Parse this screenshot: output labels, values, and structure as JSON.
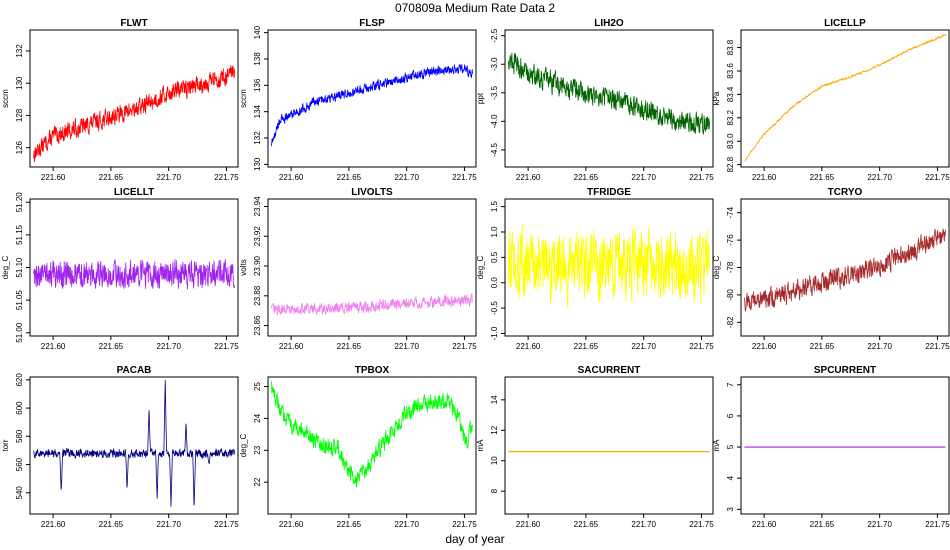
{
  "figure": {
    "title": "070809a   Medium Rate Data 2",
    "xlabel": "day of year"
  },
  "chart_data": [
    {
      "type": "line",
      "title": "FLWT",
      "ylabel": "sccm",
      "color": "#ff0000",
      "xlim": [
        221.58,
        221.76
      ],
      "ylim": [
        124.8,
        133.3
      ],
      "yticks": [
        126,
        128,
        130,
        132
      ],
      "xticks": [
        221.6,
        221.65,
        221.7,
        221.75
      ],
      "series": [
        {
          "name": "FLWT",
          "x": [
            221.583,
            221.6,
            221.625,
            221.65,
            221.675,
            221.7,
            221.725,
            221.75,
            221.757
          ],
          "y": [
            125.6,
            126.7,
            127.3,
            127.9,
            128.5,
            129.4,
            129.9,
            130.4,
            130.6
          ]
        }
      ],
      "noise": 0.75
    },
    {
      "type": "line",
      "title": "FLSP",
      "ylabel": "sccm",
      "color": "#0000ff",
      "xlim": [
        221.58,
        221.76
      ],
      "ylim": [
        129.8,
        140.2
      ],
      "yticks": [
        130,
        132,
        134,
        136,
        138,
        140
      ],
      "xticks": [
        221.6,
        221.65,
        221.7,
        221.75
      ],
      "series": [
        {
          "name": "FLSP",
          "x": [
            221.583,
            221.59,
            221.6,
            221.625,
            221.65,
            221.675,
            221.7,
            221.725,
            221.75,
            221.757
          ],
          "y": [
            131.5,
            133.3,
            133.8,
            134.9,
            135.4,
            136.0,
            136.6,
            137.1,
            137.3,
            136.8
          ]
        }
      ],
      "noise": 0.5
    },
    {
      "type": "line",
      "title": "LIH2O",
      "ylabel": "ppt",
      "color": "#006400",
      "xlim": [
        221.58,
        221.76
      ],
      "ylim": [
        -4.8,
        -2.4
      ],
      "yticks": [
        -4.5,
        -4.0,
        -3.5,
        -3.0,
        -2.5
      ],
      "xticks": [
        221.6,
        221.65,
        221.7,
        221.75
      ],
      "series": [
        {
          "name": "LIH2O",
          "x": [
            221.583,
            221.6,
            221.625,
            221.65,
            221.675,
            221.7,
            221.725,
            221.75,
            221.757
          ],
          "y": [
            -2.9,
            -3.15,
            -3.35,
            -3.5,
            -3.6,
            -3.8,
            -3.95,
            -4.05,
            -4.0
          ]
        }
      ],
      "noise": 0.25
    },
    {
      "type": "line",
      "title": "LICELLP",
      "ylabel": "kPa",
      "color": "#ffa500",
      "xlim": [
        221.58,
        221.76
      ],
      "ylim": [
        82.78,
        83.95
      ],
      "yticks": [
        82.8,
        83.0,
        83.2,
        83.4,
        83.6,
        83.8
      ],
      "xticks": [
        221.6,
        221.65,
        221.7,
        221.75
      ],
      "series": [
        {
          "name": "LICELLP",
          "x": [
            221.583,
            221.6,
            221.625,
            221.65,
            221.675,
            221.7,
            221.725,
            221.75,
            221.757
          ],
          "y": [
            82.83,
            83.06,
            83.3,
            83.47,
            83.55,
            83.65,
            83.78,
            83.88,
            83.91
          ]
        }
      ],
      "noise": 0.012
    },
    {
      "type": "line",
      "title": "LICELLT",
      "ylabel": "deg_C",
      "color": "#a020f0",
      "xlim": [
        221.58,
        221.76
      ],
      "ylim": [
        50.995,
        51.205
      ],
      "yticks": [
        51.0,
        51.05,
        51.1,
        51.15,
        51.2
      ],
      "xticks": [
        221.6,
        221.65,
        221.7,
        221.75
      ],
      "series": [
        {
          "name": "LICELLT",
          "x": [
            221.583,
            221.757
          ],
          "y": [
            51.09,
            51.09
          ]
        }
      ],
      "noise": 0.028
    },
    {
      "type": "line",
      "title": "LIVOLTS",
      "ylabel": "volts",
      "color": "#ee82ee",
      "xlim": [
        221.58,
        221.76
      ],
      "ylim": [
        23.853,
        23.945
      ],
      "yticks": [
        23.86,
        23.88,
        23.9,
        23.92,
        23.94
      ],
      "xticks": [
        221.6,
        221.65,
        221.7,
        221.75
      ],
      "series": [
        {
          "name": "LIVOLTS",
          "x": [
            221.583,
            221.625,
            221.65,
            221.675,
            221.7,
            221.725,
            221.757
          ],
          "y": [
            23.871,
            23.871,
            23.872,
            23.873,
            23.875,
            23.876,
            23.877
          ]
        }
      ],
      "noise": 0.005
    },
    {
      "type": "line",
      "title": "TFRIDGE",
      "ylabel": "deg_C",
      "color": "#ffff00",
      "xlim": [
        221.58,
        221.76
      ],
      "ylim": [
        -1.05,
        1.65
      ],
      "yticks": [
        -1.0,
        -0.5,
        0.0,
        0.5,
        1.0,
        1.5
      ],
      "xticks": [
        221.6,
        221.65,
        221.7,
        221.75
      ],
      "series": [
        {
          "name": "TFRIDGE",
          "x": [
            221.583,
            221.757
          ],
          "y": [
            0.35,
            0.35
          ]
        }
      ],
      "noise": 0.9
    },
    {
      "type": "line",
      "title": "TCRYO",
      "ylabel": "deg_C",
      "color": "#a52a2a",
      "xlim": [
        221.58,
        221.76
      ],
      "ylim": [
        -83.0,
        -73.0
      ],
      "yticks": [
        -82,
        -80,
        -78,
        -76,
        -74
      ],
      "xticks": [
        221.6,
        221.65,
        221.7,
        221.75
      ],
      "series": [
        {
          "name": "TCRYO",
          "x": [
            221.583,
            221.6,
            221.625,
            221.65,
            221.675,
            221.7,
            221.725,
            221.75,
            221.757
          ],
          "y": [
            -80.5,
            -80.3,
            -79.7,
            -79.0,
            -78.6,
            -77.8,
            -77.0,
            -75.8,
            -75.5
          ]
        }
      ],
      "noise": 1.0
    },
    {
      "type": "line",
      "title": "PACAB",
      "ylabel": "torr",
      "color": "#000080",
      "xlim": [
        221.58,
        221.76
      ],
      "ylim": [
        525,
        622
      ],
      "yticks": [
        540,
        560,
        580,
        600,
        620
      ],
      "xticks": [
        221.6,
        221.65,
        221.7,
        221.75
      ],
      "series": [
        {
          "name": "PACAB",
          "x": [
            221.583,
            221.757
          ],
          "y": [
            568,
            568
          ]
        }
      ],
      "noise": 4,
      "spikes": [
        [
          221.607,
          540
        ],
        [
          221.664,
          542
        ],
        [
          221.683,
          600
        ],
        [
          221.69,
          535
        ],
        [
          221.697,
          620
        ],
        [
          221.702,
          530
        ],
        [
          221.715,
          590
        ],
        [
          221.722,
          528
        ],
        [
          221.735,
          560
        ]
      ]
    },
    {
      "type": "line",
      "title": "TPBOX",
      "ylabel": "deg_C",
      "color": "#00ff00",
      "xlim": [
        221.58,
        221.76
      ],
      "ylim": [
        21.0,
        25.3
      ],
      "yticks": [
        22,
        23,
        24,
        25
      ],
      "xticks": [
        221.6,
        221.65,
        221.7,
        221.75
      ],
      "series": [
        {
          "name": "TPBOX",
          "x": [
            221.583,
            221.59,
            221.6,
            221.61,
            221.625,
            221.64,
            221.655,
            221.665,
            221.675,
            221.69,
            221.7,
            221.71,
            221.725,
            221.735,
            221.745,
            221.752,
            221.757
          ],
          "y": [
            25.0,
            24.3,
            23.8,
            23.6,
            23.2,
            23.1,
            22.0,
            22.4,
            23.0,
            23.7,
            24.2,
            24.4,
            24.5,
            24.6,
            24.0,
            23.2,
            23.9
          ]
        }
      ],
      "noise": 0.35
    },
    {
      "type": "line",
      "title": "SACURRENT",
      "ylabel": "mA",
      "color": "#ffa500",
      "xlim": [
        221.58,
        221.76
      ],
      "ylim": [
        6.5,
        15.5
      ],
      "yticks": [
        8,
        10,
        12,
        14
      ],
      "xticks": [
        221.6,
        221.65,
        221.7,
        221.75
      ],
      "series": [
        {
          "name": "SACURRENT",
          "x": [
            221.583,
            221.757
          ],
          "y": [
            10.6,
            10.6
          ]
        }
      ],
      "noise": 0
    },
    {
      "type": "line",
      "title": "SPCURRENT",
      "ylabel": "mA",
      "color": "#a020f0",
      "xlim": [
        221.58,
        221.76
      ],
      "ylim": [
        2.85,
        7.25
      ],
      "yticks": [
        3,
        4,
        5,
        6,
        7
      ],
      "xticks": [
        221.6,
        221.65,
        221.7,
        221.75
      ],
      "series": [
        {
          "name": "SPCURRENT",
          "x": [
            221.583,
            221.757
          ],
          "y": [
            5.0,
            5.0
          ]
        }
      ],
      "noise": 0
    }
  ]
}
